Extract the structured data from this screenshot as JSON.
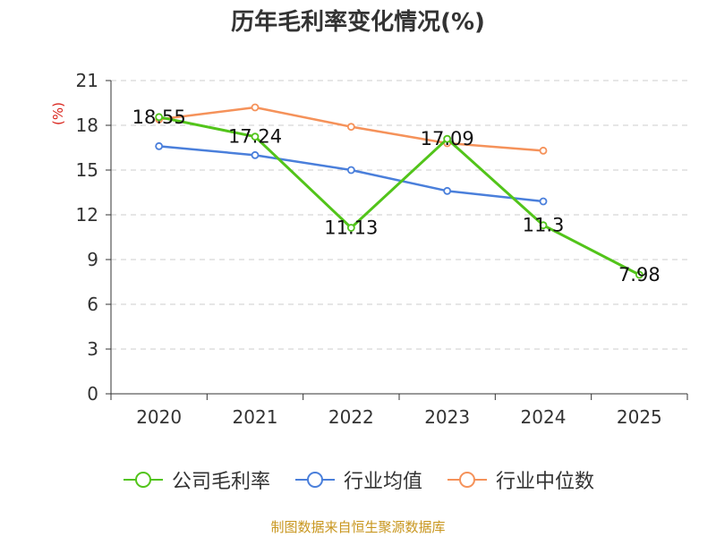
{
  "chart_data": {
    "type": "line",
    "title": "历年毛利率变化情况(%)",
    "ylabel": "(%)",
    "xlabel": "",
    "categories": [
      "2020",
      "2021",
      "2022",
      "2023",
      "2024",
      "2025"
    ],
    "ylim": [
      0,
      21
    ],
    "yticks": [
      "0",
      "3",
      "6",
      "9",
      "12",
      "15",
      "18",
      "21"
    ],
    "grid": true,
    "legend_position": "bottom",
    "series": [
      {
        "name": "公司毛利率",
        "color": "#52c41a",
        "values": [
          18.55,
          17.24,
          11.13,
          17.09,
          11.3,
          7.98
        ],
        "labels": [
          "18.55",
          "17.24",
          "11.13",
          "17.09",
          "11.3",
          "7.98"
        ]
      },
      {
        "name": "行业均值",
        "color": "#4a7fdb",
        "values": [
          16.6,
          16.0,
          15.0,
          13.6,
          12.9,
          null
        ]
      },
      {
        "name": "行业中位数",
        "color": "#f5925a",
        "values": [
          18.4,
          19.2,
          17.9,
          16.8,
          16.3,
          null
        ]
      }
    ]
  },
  "footer": {
    "source": "制图数据来自恒生聚源数据库"
  }
}
